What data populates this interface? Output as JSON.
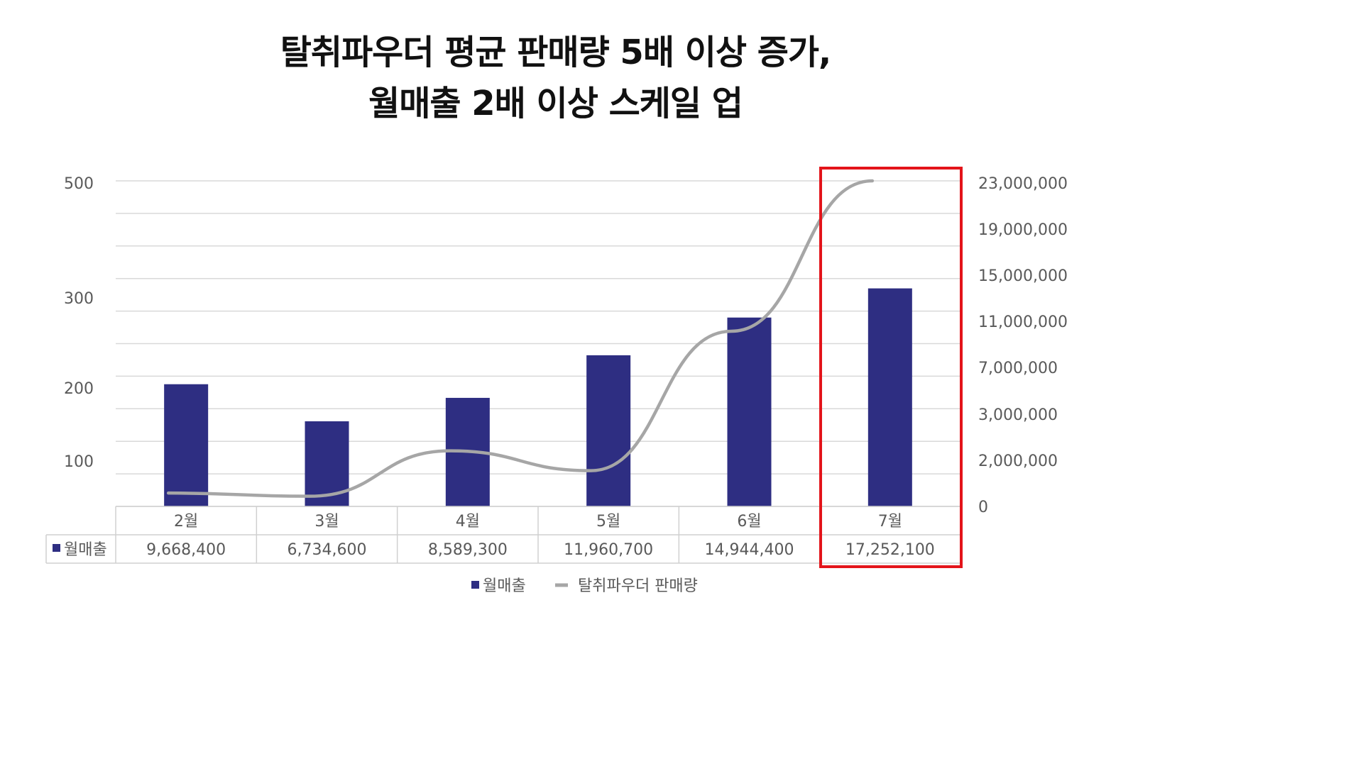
{
  "title": {
    "line1": "탈취파우더 평균 판매량 5배 이상 증가,",
    "line2": "월매출 2배 이상 스케일 업"
  },
  "chart_data": {
    "type": "bar",
    "categories": [
      "2월",
      "3월",
      "4월",
      "5월",
      "6월",
      "7월"
    ],
    "series": [
      {
        "name": "월매출",
        "type": "bar",
        "axis": "right",
        "values": [
          9668400,
          6734600,
          8589300,
          11960700,
          14944400,
          17252100
        ],
        "display": [
          "9,668,400",
          "6,734,600",
          "8,589,300",
          "11,960,700",
          "14,944,400",
          "17,252,100"
        ],
        "color": "#2e2e82"
      },
      {
        "name": "탈취파우더 판매량",
        "type": "line",
        "axis": "left",
        "values": [
          12,
          7,
          78,
          47,
          265,
          500
        ],
        "color": "#a6a6a6"
      }
    ],
    "left_axis_labels": [
      "500",
      "300",
      "200",
      "100"
    ],
    "right_axis_labels": [
      "23,000,000",
      "19,000,000",
      "15,000,000",
      "11,000,000",
      "7,000,000",
      "3,000,000",
      "2,000,000",
      "0"
    ],
    "grid": true,
    "data_table": true,
    "highlight": {
      "category": "7월",
      "color": "#e3141a"
    },
    "legend": {
      "position": "bottom",
      "items": [
        "월매출",
        "탈취파우더 판매량"
      ]
    }
  }
}
